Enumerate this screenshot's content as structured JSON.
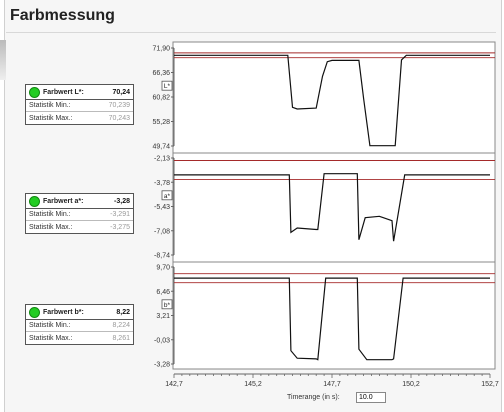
{
  "title": "Farbmessung",
  "panels": [
    {
      "id": "L",
      "label": "Farbwert L*:",
      "value": "70,24",
      "stat_min_label": "Statistik Min.:",
      "stat_min": "70,239",
      "stat_max_label": "Statistik Max.:",
      "stat_max": "70,243",
      "axis_label": "L*",
      "ticks": [
        "71,90",
        "66,36",
        "60,82",
        "55,28",
        "49,74"
      ]
    },
    {
      "id": "a",
      "label": "Farbwert a*:",
      "value": "-3,28",
      "stat_min_label": "Statistik Min.:",
      "stat_min": "-3,291",
      "stat_max_label": "Statistik Max.:",
      "stat_max": "-3,275",
      "axis_label": "a*",
      "ticks": [
        "-2,13",
        "-3,78",
        "-5,43",
        "-7,08",
        "-8,74"
      ]
    },
    {
      "id": "b",
      "label": "Farbwert b*:",
      "value": "8,22",
      "stat_min_label": "Statistik Min.:",
      "stat_min": "8,224",
      "stat_max_label": "Statistik Max.:",
      "stat_max": "8,261",
      "axis_label": "b*",
      "ticks": [
        "9,70",
        "6,46",
        "3,21",
        "-0,03",
        "-3,28"
      ]
    }
  ],
  "x_ticks": [
    "142,7",
    "145,2",
    "147,7",
    "150,2",
    "152,7"
  ],
  "timerange_label": "Timerange (in s):",
  "timerange_value": "10.0",
  "chart_data": [
    {
      "type": "line",
      "ylabel": "L*",
      "xlim": [
        142.7,
        152.7
      ],
      "ylim": [
        49.74,
        71.9
      ],
      "limits": [
        70.8,
        69.7
      ],
      "series": [
        {
          "x": [
            142.7,
            146.3,
            146.45,
            146.6,
            147.2,
            147.4,
            147.55,
            147.7,
            148.3,
            148.55,
            148.7,
            148.9,
            149.7,
            149.9,
            150.05,
            152.7
          ],
          "y": [
            70.24,
            70.24,
            58.5,
            58.1,
            58.3,
            65.5,
            68.8,
            69.1,
            69.1,
            69.1,
            60.5,
            49.8,
            49.8,
            69.2,
            70.24,
            70.24
          ]
        }
      ]
    },
    {
      "type": "line",
      "ylabel": "a*",
      "xlim": [
        142.7,
        152.7
      ],
      "ylim": [
        -8.74,
        -2.13
      ],
      "limits": [
        -2.3,
        -3.6
      ],
      "series": [
        {
          "x": [
            142.7,
            146.35,
            146.4,
            146.6,
            147.2,
            147.25,
            147.45,
            148.5,
            148.55,
            148.75,
            149.2,
            149.6,
            149.65,
            150.0,
            152.7
          ],
          "y": [
            -3.28,
            -3.28,
            -7.2,
            -6.9,
            -7.0,
            -7.0,
            -3.2,
            -3.2,
            -7.7,
            -6.2,
            -6.1,
            -6.4,
            -7.8,
            -3.28,
            -3.28
          ]
        }
      ]
    },
    {
      "type": "line",
      "ylabel": "b*",
      "xlim": [
        142.7,
        152.7
      ],
      "ylim": [
        -3.28,
        9.7
      ],
      "limits": [
        8.8,
        7.6
      ],
      "series": [
        {
          "x": [
            142.7,
            146.35,
            146.4,
            146.6,
            147.2,
            147.25,
            147.5,
            148.5,
            148.55,
            148.8,
            149.6,
            149.65,
            149.95,
            152.7
          ],
          "y": [
            8.22,
            8.22,
            -1.5,
            -2.5,
            -2.6,
            -2.7,
            8.22,
            8.22,
            -1.3,
            -2.7,
            -2.7,
            -2.6,
            8.22,
            8.22
          ]
        }
      ]
    }
  ]
}
